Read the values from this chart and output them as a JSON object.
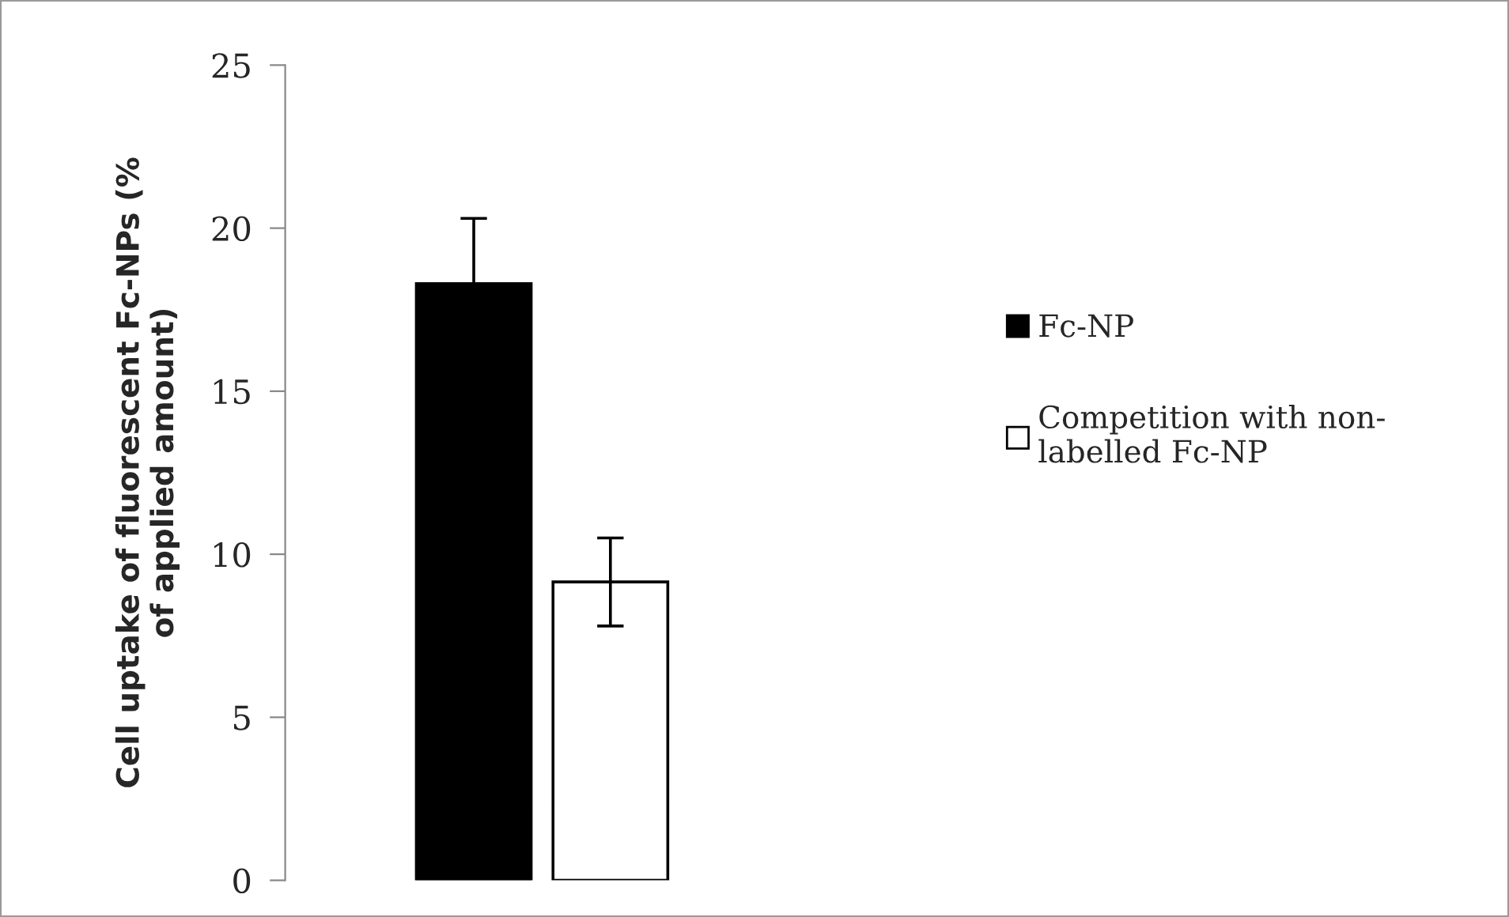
{
  "chart_data": {
    "type": "bar",
    "ylabel": "Cell uptake of fluorescent Fc-NPs (%\nof applied amount)",
    "categories": [
      null
    ],
    "series": [
      {
        "name": "Fc-NP",
        "color": "#000000",
        "values": [
          18.3
        ],
        "errors": [
          2.0
        ]
      },
      {
        "name": "Competition with non-\nlabelled Fc-NP",
        "color": "#ffffff",
        "values": [
          9.15
        ],
        "errors": [
          1.35
        ]
      }
    ],
    "ylim": [
      0,
      25
    ],
    "yticks": [
      0,
      5,
      10,
      15,
      20,
      25
    ],
    "grid": false,
    "legend": "right"
  }
}
